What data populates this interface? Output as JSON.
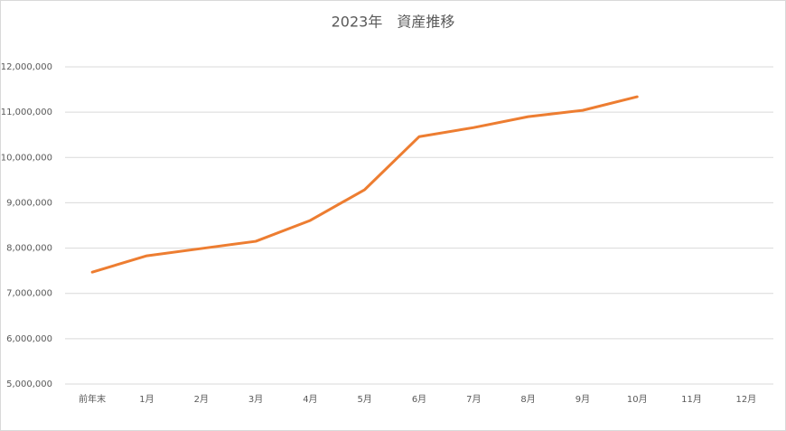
{
  "chart_data": {
    "type": "line",
    "title": "2023年　資産推移",
    "categories": [
      "前年末",
      "1月",
      "2月",
      "3月",
      "4月",
      "5月",
      "6月",
      "7月",
      "8月",
      "9月",
      "10月",
      "11月",
      "12月"
    ],
    "series": [
      {
        "name": "資産",
        "color": "#ed7d31",
        "values": [
          7470000,
          7830000,
          7990000,
          8150000,
          8610000,
          9290000,
          10460000,
          10660000,
          10900000,
          11040000,
          11340000,
          null,
          null
        ]
      }
    ],
    "ylim": [
      5000000,
      12000000
    ],
    "yticks": [
      {
        "value": 5000000,
        "label": "5,000,000"
      },
      {
        "value": 6000000,
        "label": "6,000,000"
      },
      {
        "value": 7000000,
        "label": "7,000,000"
      },
      {
        "value": 8000000,
        "label": "8,000,000"
      },
      {
        "value": 9000000,
        "label": "9,000,000"
      },
      {
        "value": 10000000,
        "label": "10,000,000"
      },
      {
        "value": 11000000,
        "label": "11,000,000"
      },
      {
        "value": 12000000,
        "label": "12,000,000"
      }
    ],
    "grid": true
  }
}
